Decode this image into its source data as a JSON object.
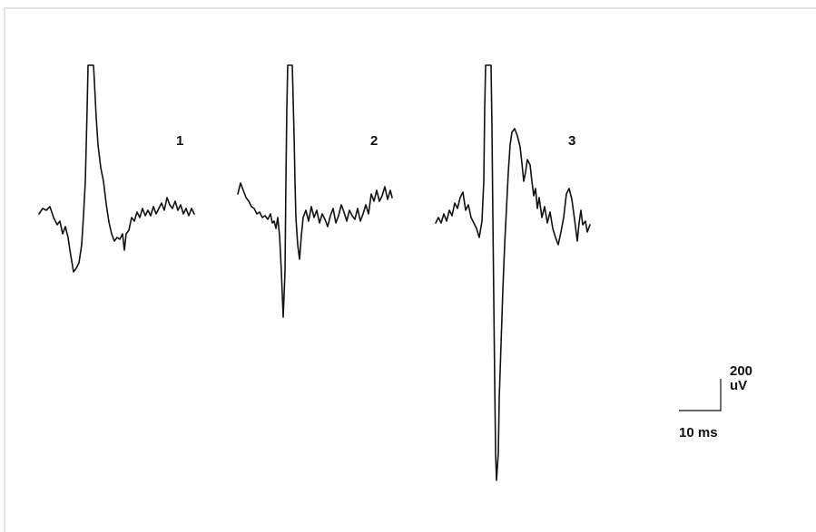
{
  "waveforms": [
    {
      "label": "1"
    },
    {
      "label": "2"
    },
    {
      "label": "3"
    }
  ],
  "scale_bar": {
    "amplitude_value": "200",
    "amplitude_unit": "uV",
    "time_label": "10 ms"
  },
  "colors": {
    "trace": "#111111",
    "frame": "#c8c8c8",
    "background": "#ffffff"
  }
}
